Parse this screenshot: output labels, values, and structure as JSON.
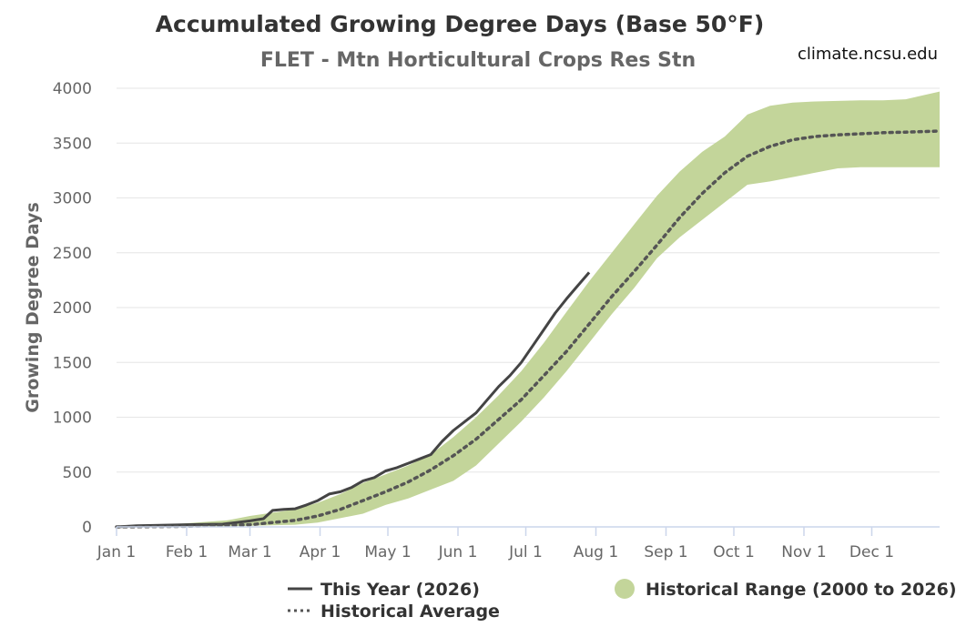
{
  "header": {
    "title": "Accumulated Growing Degree Days (Base 50°F)",
    "subtitle": "FLET - Mtn Horticultural Crops Res Stn",
    "credit": "climate.ncsu.edu"
  },
  "colors": {
    "this_year": "#444444",
    "average": "#555555",
    "range_fill": "#c3d59a",
    "grid": "#e6e6e6",
    "axis": "#ccd6eb"
  },
  "chart_data": {
    "type": "area",
    "title": "Accumulated Growing Degree Days (Base 50°F)",
    "subtitle": "FLET - Mtn Horticultural Crops Res Stn",
    "xlabel": "",
    "ylabel": "Growing Degree Days",
    "ylim": [
      0,
      4000
    ],
    "xlim": [
      1,
      365
    ],
    "x_unit": "day of year",
    "x_ticks": [
      {
        "label": "Jan 1",
        "day": 1
      },
      {
        "label": "Feb 1",
        "day": 32
      },
      {
        "label": "Mar 1",
        "day": 60
      },
      {
        "label": "Apr 1",
        "day": 91
      },
      {
        "label": "May 1",
        "day": 121
      },
      {
        "label": "Jun 1",
        "day": 152
      },
      {
        "label": "Jul 1",
        "day": 182
      },
      {
        "label": "Aug 1",
        "day": 213
      },
      {
        "label": "Sep 1",
        "day": 244
      },
      {
        "label": "Oct 1",
        "day": 274
      },
      {
        "label": "Nov 1",
        "day": 305
      },
      {
        "label": "Dec 1",
        "day": 335
      }
    ],
    "y_ticks": [
      0,
      500,
      1000,
      1500,
      2000,
      2500,
      3000,
      3500,
      4000
    ],
    "grid": true,
    "legend_position": "bottom",
    "series": [
      {
        "name": "This Year (2026)",
        "style": "solid",
        "x": [
          1,
          10,
          20,
          32,
          40,
          48,
          50,
          60,
          66,
          70,
          75,
          80,
          85,
          90,
          95,
          100,
          105,
          110,
          115,
          120,
          125,
          130,
          135,
          140,
          145,
          150,
          155,
          160,
          165,
          170,
          175,
          180,
          185,
          190,
          195,
          200,
          205,
          210
        ],
        "y": [
          0,
          10,
          15,
          20,
          22,
          25,
          30,
          55,
          75,
          150,
          160,
          165,
          200,
          240,
          300,
          320,
          360,
          420,
          450,
          510,
          540,
          580,
          620,
          660,
          780,
          880,
          960,
          1040,
          1160,
          1280,
          1380,
          1500,
          1650,
          1800,
          1950,
          2080,
          2200,
          2320
        ]
      },
      {
        "name": "Historical Average",
        "style": "dotted",
        "x": [
          1,
          30,
          60,
          80,
          90,
          100,
          110,
          120,
          130,
          140,
          150,
          160,
          170,
          180,
          190,
          200,
          210,
          220,
          230,
          240,
          250,
          260,
          270,
          280,
          290,
          300,
          310,
          320,
          330,
          340,
          350,
          365
        ],
        "y": [
          0,
          5,
          20,
          60,
          100,
          160,
          240,
          320,
          410,
          520,
          650,
          800,
          980,
          1160,
          1380,
          1600,
          1850,
          2100,
          2330,
          2570,
          2820,
          3040,
          3230,
          3380,
          3470,
          3530,
          3560,
          3575,
          3585,
          3595,
          3600,
          3610
        ]
      },
      {
        "name": "Historical Range (2000 to 2026)",
        "style": "range",
        "x": [
          1,
          30,
          50,
          60,
          80,
          90,
          100,
          110,
          120,
          130,
          140,
          150,
          160,
          170,
          180,
          190,
          200,
          210,
          220,
          230,
          240,
          250,
          260,
          270,
          280,
          290,
          300,
          310,
          320,
          330,
          340,
          350,
          365
        ],
        "low": [
          0,
          0,
          5,
          10,
          20,
          40,
          80,
          120,
          200,
          260,
          340,
          420,
          560,
          760,
          960,
          1180,
          1420,
          1680,
          1940,
          2180,
          2450,
          2640,
          2800,
          2960,
          3120,
          3150,
          3190,
          3230,
          3270,
          3280,
          3280,
          3280,
          3280
        ],
        "high": [
          10,
          30,
          60,
          100,
          160,
          220,
          300,
          400,
          480,
          560,
          660,
          820,
          1000,
          1200,
          1420,
          1680,
          1960,
          2240,
          2500,
          2760,
          3020,
          3240,
          3420,
          3560,
          3760,
          3840,
          3870,
          3880,
          3885,
          3890,
          3890,
          3900,
          3970
        ]
      }
    ]
  },
  "legend": {
    "this_year": "This Year (2026)",
    "average": "Historical Average",
    "range": "Historical Range (2000 to 2026)"
  }
}
